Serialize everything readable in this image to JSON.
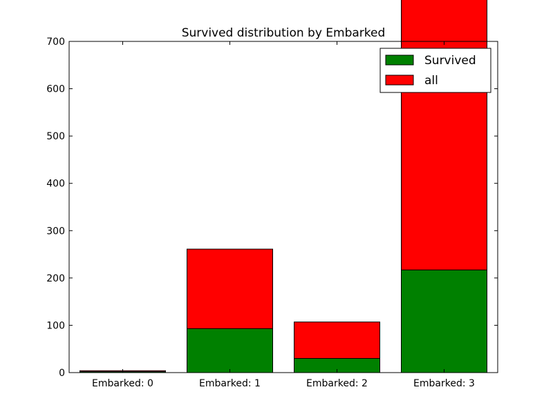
{
  "chart_data": {
    "type": "bar",
    "stacked": true,
    "title": "Survived distribution by Embarked",
    "xlabel": "",
    "ylabel": "",
    "categories": [
      "Embarked: 0",
      "Embarked: 1",
      "Embarked: 2",
      "Embarked: 3"
    ],
    "ylim": [
      0,
      700
    ],
    "yticks": [
      0,
      100,
      200,
      300,
      400,
      500,
      600,
      700
    ],
    "grid": false,
    "legend": "top-right",
    "series": [
      {
        "name": "Survived",
        "color": "#008000",
        "values": [
          2,
          93,
          30,
          217
        ]
      },
      {
        "name": "all",
        "color": "#ff0000",
        "values": [
          2,
          168,
          77,
          644
        ]
      }
    ]
  }
}
